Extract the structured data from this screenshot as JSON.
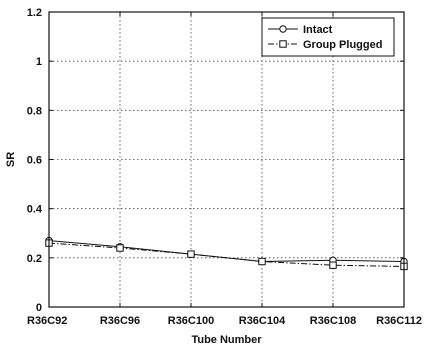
{
  "chart_data": {
    "type": "line",
    "title": "",
    "xlabel": "Tube Number",
    "ylabel": "SR",
    "categories": [
      "R36C92",
      "R36C96",
      "R36C100",
      "R36C104",
      "R36C108",
      "R36C112"
    ],
    "ylim": [
      0,
      1.2
    ],
    "yticks": [
      "0",
      "0.2",
      "0.4",
      "0.6",
      "0.8",
      "1",
      "1.2"
    ],
    "grid": true,
    "legend_position": "top-right",
    "series": [
      {
        "name": "Intact",
        "values": [
          0.27,
          0.245,
          0.215,
          0.185,
          0.19,
          0.185
        ],
        "marker": "circle",
        "line_style": "solid"
      },
      {
        "name": "Group Plugged",
        "values": [
          0.26,
          0.24,
          0.215,
          0.185,
          0.17,
          0.165
        ],
        "marker": "square",
        "line_style": "dash-dot"
      }
    ]
  }
}
